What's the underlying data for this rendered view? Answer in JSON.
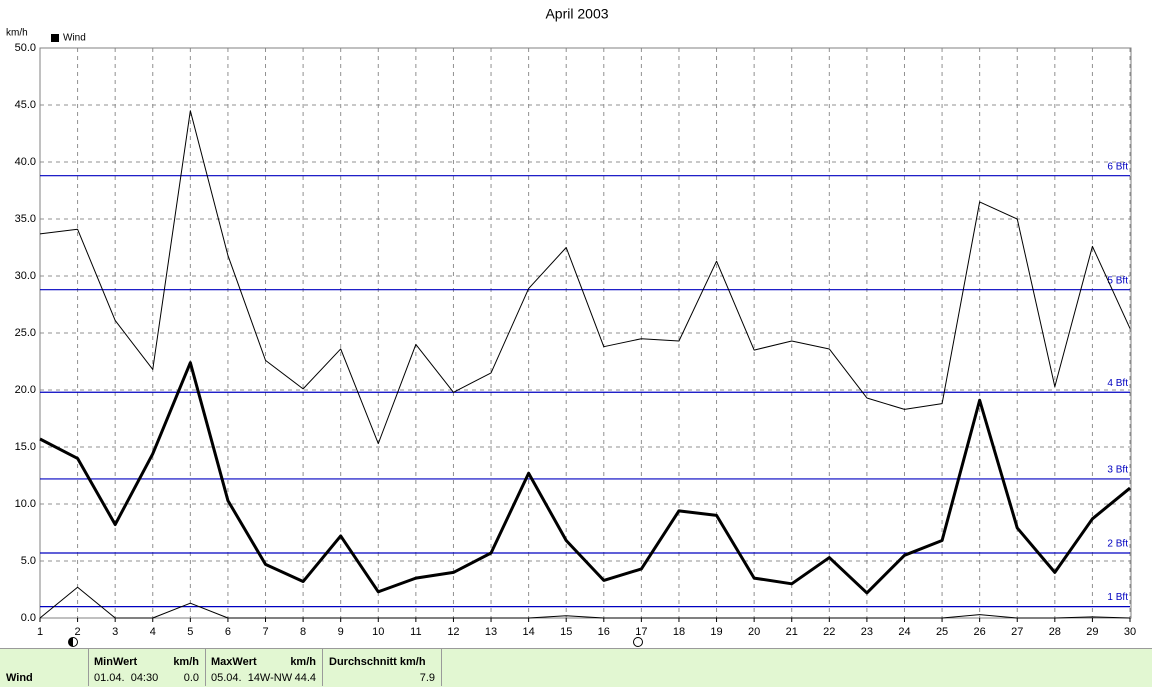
{
  "chart_data": {
    "type": "line",
    "title": "April 2003",
    "y_label": "km/h",
    "x": [
      1,
      2,
      3,
      4,
      5,
      6,
      7,
      8,
      9,
      10,
      11,
      12,
      13,
      14,
      15,
      16,
      17,
      18,
      19,
      20,
      21,
      22,
      23,
      24,
      25,
      26,
      27,
      28,
      29,
      30
    ],
    "xlim": [
      1,
      30
    ],
    "xticks": [
      1,
      2,
      3,
      4,
      5,
      6,
      7,
      8,
      9,
      10,
      11,
      12,
      13,
      14,
      15,
      16,
      17,
      18,
      19,
      20,
      21,
      22,
      23,
      24,
      25,
      26,
      27,
      28,
      29,
      30
    ],
    "ylim": [
      0,
      50
    ],
    "yticks": [
      {
        "value": 0,
        "label": "0.0"
      },
      {
        "value": 5,
        "label": "5.0"
      },
      {
        "value": 10,
        "label": "10.0"
      },
      {
        "value": 15,
        "label": "15.0"
      },
      {
        "value": 20,
        "label": "20.0"
      },
      {
        "value": 25,
        "label": "25.0"
      },
      {
        "value": 30,
        "label": "30.0"
      },
      {
        "value": 35,
        "label": "35.0"
      },
      {
        "value": 40,
        "label": "40.0"
      },
      {
        "value": 45,
        "label": "45.0"
      },
      {
        "value": 50,
        "label": "50.0"
      }
    ],
    "grid": true,
    "series": [
      {
        "name": "Wind",
        "color": "#000000",
        "width": 3,
        "values": [
          15.7,
          14.0,
          8.2,
          14.4,
          22.4,
          10.3,
          4.7,
          3.2,
          7.2,
          2.3,
          3.5,
          4.0,
          5.7,
          12.7,
          6.8,
          3.3,
          4.3,
          9.4,
          9.0,
          3.5,
          3.0,
          5.3,
          2.2,
          5.5,
          6.8,
          19.1,
          7.9,
          4.0,
          8.7,
          11.4
        ]
      },
      {
        "color": "#000000",
        "width": 1,
        "values": [
          33.7,
          34.1,
          26.1,
          21.8,
          44.5,
          31.8,
          22.6,
          20.1,
          23.6,
          15.3,
          24.0,
          19.8,
          21.5,
          28.9,
          32.5,
          23.8,
          24.5,
          24.3,
          31.3,
          23.5,
          24.3,
          23.6,
          19.3,
          18.3,
          18.8,
          36.5,
          35.0,
          20.3,
          32.6,
          25.4
        ]
      },
      {
        "color": "#000000",
        "width": 1,
        "values": [
          0,
          2.7,
          0,
          0,
          1.3,
          0,
          0,
          0,
          0,
          0,
          0,
          0,
          0,
          0,
          0.2,
          0,
          0,
          0,
          0,
          0,
          0,
          0,
          0,
          0,
          0,
          0.3,
          0,
          0,
          0.1,
          0
        ]
      }
    ],
    "reference_lines": [
      {
        "value": 38.8,
        "label": "6 Bft"
      },
      {
        "value": 28.8,
        "label": "5 Bft"
      },
      {
        "value": 19.8,
        "label": "4 Bft"
      },
      {
        "value": 12.2,
        "label": "3 Bft"
      },
      {
        "value": 5.7,
        "label": "2 Bft"
      },
      {
        "value": 1.0,
        "label": "1 Bft"
      }
    ],
    "reference_color": "#0000c0"
  },
  "summary": {
    "label": "Wind",
    "min_header": "MinWert",
    "min_unit": "km/h",
    "min_time": "01.04.  04:30",
    "min_value": "0.0",
    "max_header": "MaxWert",
    "max_unit": "km/h",
    "max_time": "05.04.  14W-NW",
    "max_value": "44.4",
    "avg_header": "Durchschnitt km/h",
    "avg_value": "7.9"
  }
}
